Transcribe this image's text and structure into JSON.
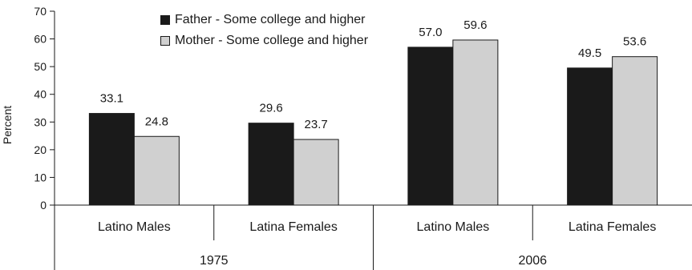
{
  "chart_data": {
    "type": "bar",
    "ylabel": "Percent",
    "xlabel": "",
    "ylim": [
      0,
      70
    ],
    "yticks": [
      0,
      10,
      20,
      30,
      40,
      50,
      60,
      70
    ],
    "groups": [
      {
        "label": "1975",
        "categories": [
          "Latino Males",
          "Latina Females"
        ]
      },
      {
        "label": "2006",
        "categories": [
          "Latino Males",
          "Latina Females"
        ]
      }
    ],
    "series": [
      {
        "name": "Father - Some college and higher",
        "color": "#1a1a1a",
        "values": [
          33.1,
          29.6,
          57.0,
          49.5
        ],
        "labels": [
          "33.1",
          "29.6",
          "57.0",
          "49.5"
        ]
      },
      {
        "name": "Mother - Some college and higher",
        "color": "#d0d0d0",
        "values": [
          24.8,
          23.7,
          59.6,
          53.6
        ],
        "labels": [
          "24.8",
          "23.7",
          "59.6",
          "53.6"
        ]
      }
    ],
    "legend_position": "top-left",
    "grid": false
  }
}
